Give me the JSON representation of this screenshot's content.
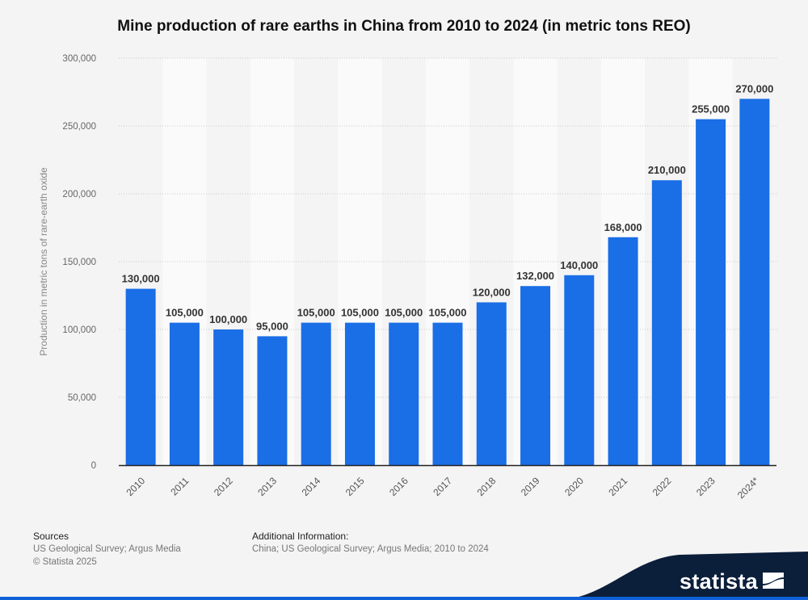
{
  "chart_data": {
    "type": "bar",
    "title": "Mine production of rare earths in China from 2010 to 2024 (in metric tons REO)",
    "xlabel": "",
    "ylabel": "Production in metric tons of rare-earth oxide",
    "categories": [
      "2010",
      "2011",
      "2012",
      "2013",
      "2014",
      "2015",
      "2016",
      "2017",
      "2018",
      "2019",
      "2020",
      "2021",
      "2022",
      "2023",
      "2024*"
    ],
    "values": [
      130000,
      105000,
      100000,
      95000,
      105000,
      105000,
      105000,
      105000,
      120000,
      132000,
      140000,
      168000,
      210000,
      255000,
      270000
    ],
    "value_labels": [
      "130,000",
      "105,000",
      "100,000",
      "95,000",
      "105,000",
      "105,000",
      "105,000",
      "105,000",
      "120,000",
      "132,000",
      "140,000",
      "168,000",
      "210,000",
      "255,000",
      "270,000"
    ],
    "ylim": [
      0,
      300000
    ],
    "yticks": [
      0,
      50000,
      100000,
      150000,
      200000,
      250000,
      300000
    ],
    "ytick_labels": [
      "0",
      "50,000",
      "100,000",
      "150,000",
      "200,000",
      "250,000",
      "300,000"
    ],
    "grid": true,
    "bar_color": "#1a6ee6"
  },
  "footer": {
    "sources_heading": "Sources",
    "sources_line1": "US Geological Survey; Argus Media",
    "sources_line2": "© Statista 2025",
    "additional_heading": "Additional Information:",
    "additional_text": "China; US Geological Survey; Argus Media; 2010 to 2024"
  },
  "brand": {
    "name": "statista",
    "bg_color": "#0b1e3a"
  }
}
